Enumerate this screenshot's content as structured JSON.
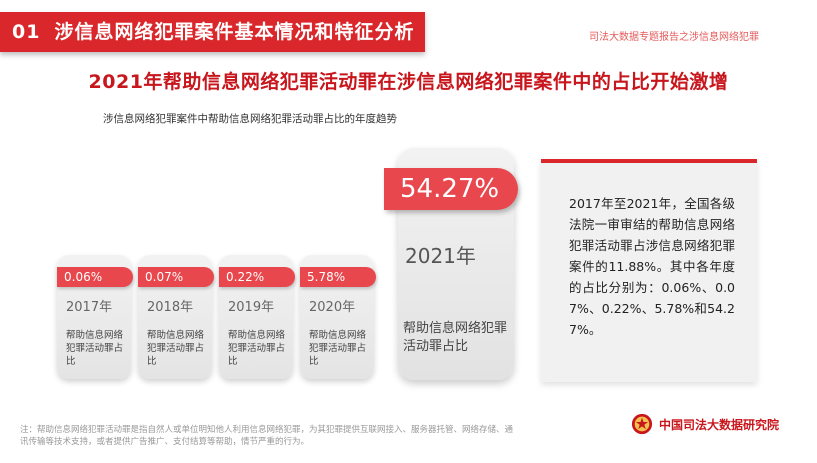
{
  "section": {
    "number": "01",
    "title": "涉信息网络犯罪案件基本情况和特征分析"
  },
  "header_right": "司法大数据专题报告之涉信息网络犯罪",
  "headline": "2021年帮助信息网络犯罪活动罪在涉信息网络犯罪案件中的占比开始激增",
  "chart_subtitle": "涉信息网络犯罪案件中帮助信息网络犯罪活动罪占比的年度趋势",
  "cards": [
    {
      "percent": "0.06%",
      "year": "2017年",
      "desc": "帮助信息网络犯罪活动罪占比"
    },
    {
      "percent": "0.07%",
      "year": "2018年",
      "desc": "帮助信息网络犯罪活动罪占比"
    },
    {
      "percent": "0.22%",
      "year": "2019年",
      "desc": "帮助信息网络犯罪活动罪占比"
    },
    {
      "percent": "5.78%",
      "year": "2020年",
      "desc": "帮助信息网络犯罪活动罪占比"
    },
    {
      "percent": "54.27%",
      "year": "2021年",
      "desc": "帮助信息网络犯罪活动罪占比"
    }
  ],
  "summary_text": "2017年至2021年，全国各级法院一审审结的帮助信息网络犯罪活动罪占涉信息网络犯罪案件的11.88%。其中各年度的占比分别为：0.06%、0.07%、0.22%、5.78%和54.27%。",
  "footnote": "注：帮助信息网络犯罪活动罪是指自然人或单位明知他人利用信息网络犯罪，为其犯罪提供互联网接入、服务器托管、网络存储、通讯传输等技术支持，或者提供广告推广、支付结算等帮助，情节严重的行为。",
  "footer_brand": "中国司法大数据研究院",
  "icons": {
    "emblem": "court-emblem-icon"
  },
  "colors": {
    "accent": "#d9272b",
    "pill": "#e8484d",
    "card_bg": "#ececec"
  }
}
